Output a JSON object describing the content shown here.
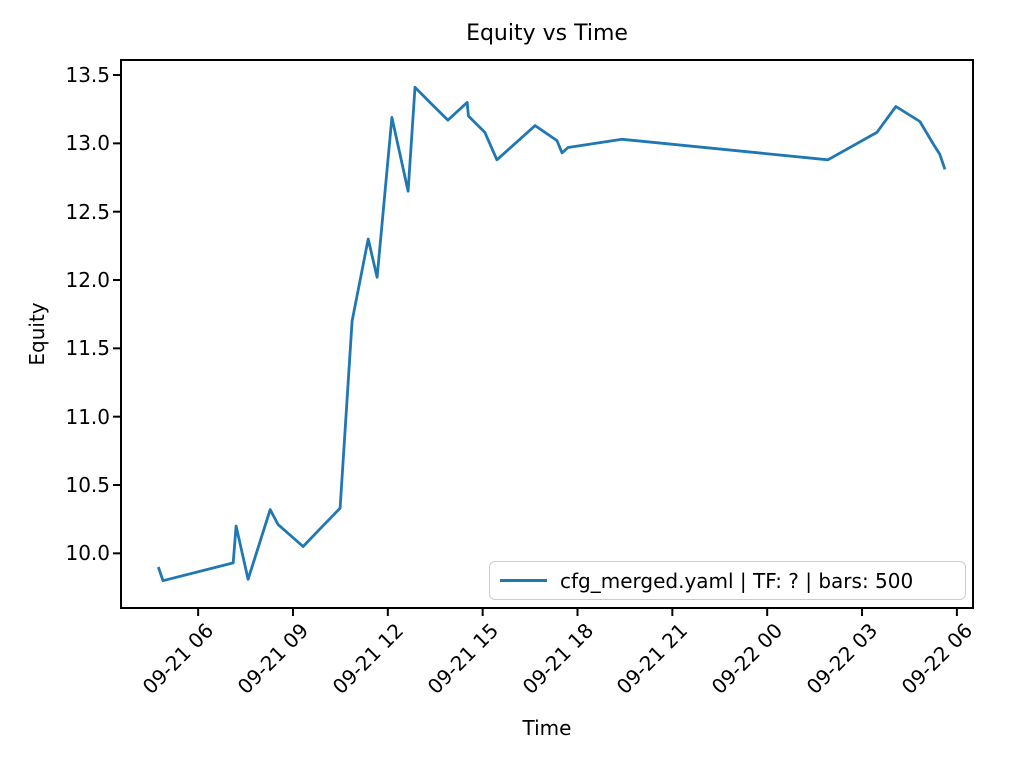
{
  "figure": {
    "title": "Equity vs Time",
    "xlabel": "Time",
    "ylabel": "Equity"
  },
  "chart_data": {
    "type": "line",
    "title": "Equity vs Time",
    "xlabel": "Time",
    "ylabel": "Equity",
    "grid": false,
    "legend_position": "lower right",
    "x_unit": "hours since 09-21 00:00",
    "xlim": [
      3.56,
      30.51
    ],
    "ylim": [
      9.6,
      13.61
    ],
    "x_ticks": [
      {
        "value": 6,
        "label": "09-21 06"
      },
      {
        "value": 9,
        "label": "09-21 09"
      },
      {
        "value": 12,
        "label": "09-21 12"
      },
      {
        "value": 15,
        "label": "09-21 15"
      },
      {
        "value": 18,
        "label": "09-21 18"
      },
      {
        "value": 21,
        "label": "09-21 21"
      },
      {
        "value": 24,
        "label": "09-22 00"
      },
      {
        "value": 27,
        "label": "09-22 03"
      },
      {
        "value": 30,
        "label": "09-22 06"
      }
    ],
    "y_ticks": [
      {
        "value": 10.0,
        "label": "10.0"
      },
      {
        "value": 10.5,
        "label": "10.5"
      },
      {
        "value": 11.0,
        "label": "11.0"
      },
      {
        "value": 11.5,
        "label": "11.5"
      },
      {
        "value": 12.0,
        "label": "12.0"
      },
      {
        "value": 12.5,
        "label": "12.5"
      },
      {
        "value": 13.0,
        "label": "13.0"
      },
      {
        "value": 13.5,
        "label": "13.5"
      }
    ],
    "series": [
      {
        "name": "cfg_merged.yaml | TF: ? | bars: 500",
        "color": "#1f77b4",
        "points": [
          [
            4.74,
            9.9
          ],
          [
            4.89,
            9.8
          ],
          [
            7.11,
            9.93
          ],
          [
            7.2,
            10.2
          ],
          [
            7.58,
            9.81
          ],
          [
            8.28,
            10.32
          ],
          [
            8.53,
            10.21
          ],
          [
            9.32,
            10.05
          ],
          [
            9.86,
            10.18
          ],
          [
            10.49,
            10.33
          ],
          [
            10.87,
            11.7
          ],
          [
            11.38,
            12.3
          ],
          [
            11.66,
            12.02
          ],
          [
            12.13,
            13.19
          ],
          [
            12.64,
            12.65
          ],
          [
            12.86,
            13.41
          ],
          [
            13.33,
            13.3
          ],
          [
            13.9,
            13.17
          ],
          [
            14.51,
            13.3
          ],
          [
            14.55,
            13.2
          ],
          [
            15.07,
            13.08
          ],
          [
            15.45,
            12.88
          ],
          [
            16.66,
            13.13
          ],
          [
            17.35,
            13.02
          ],
          [
            17.51,
            12.93
          ],
          [
            17.7,
            12.97
          ],
          [
            19.41,
            13.03
          ],
          [
            25.92,
            12.88
          ],
          [
            27.47,
            13.08
          ],
          [
            28.07,
            13.27
          ],
          [
            28.83,
            13.16
          ],
          [
            29.24,
            13.0
          ],
          [
            29.46,
            12.92
          ],
          [
            29.62,
            12.81
          ]
        ]
      }
    ]
  }
}
